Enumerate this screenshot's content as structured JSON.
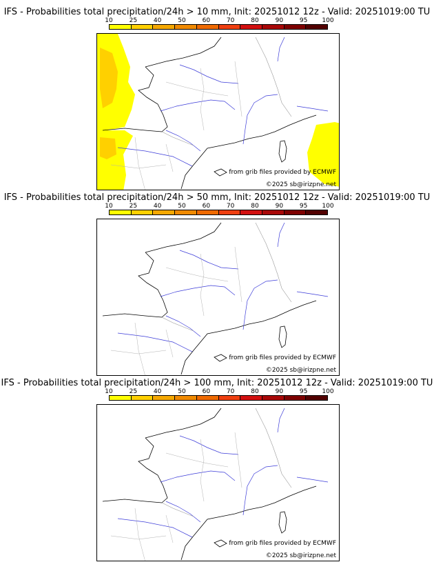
{
  "colorbar": {
    "ticks": [
      "10",
      "25",
      "40",
      "50",
      "60",
      "70",
      "80",
      "90",
      "95",
      "100"
    ],
    "colors": [
      "#ffff00",
      "#ffd000",
      "#f5a800",
      "#f08a00",
      "#ef6a00",
      "#ef3f10",
      "#d21010",
      "#a80808",
      "#7e0000",
      "#520000"
    ]
  },
  "panels": [
    {
      "title": "IFS - Probabilities total precipitation/24h > 10 mm, Init: 20251012 12z - Valid: 20251019:00 TU",
      "credit_grib": "from grib files provided by ECMWF",
      "credit_copyright": "©2025 sb@irizpne.net",
      "precip_areas": [
        "atlantic-west",
        "iberia-west",
        "mediterranean-east"
      ]
    },
    {
      "title": "IFS - Probabilities total precipitation/24h > 50 mm, Init: 20251012 12z - Valid: 20251019:00 TU",
      "credit_grib": "from grib files provided by ECMWF",
      "credit_copyright": "©2025 sb@irizpne.net",
      "precip_areas": []
    },
    {
      "title": "IFS - Probabilities total precipitation/24h > 100 mm, Init: 20251012 12z - Valid: 20251019:00 TU",
      "credit_grib": "from grib files provided by ECMWF",
      "credit_copyright": "©2025 sb@irizpne.net",
      "precip_areas": []
    }
  ]
}
